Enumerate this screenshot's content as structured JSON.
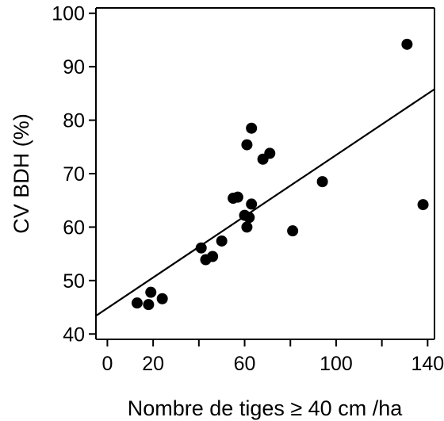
{
  "chart_data": {
    "type": "scatter",
    "title": "",
    "xlabel": "Nombre de tiges ≥ 40 cm /ha",
    "ylabel": "CV BDH (%)",
    "xlim": [
      -5,
      143
    ],
    "ylim": [
      39,
      101
    ],
    "x_ticks": [
      0,
      20,
      40,
      60,
      80,
      100,
      120,
      140
    ],
    "x_tick_labels": [
      "0",
      "20",
      "",
      "60",
      "",
      "100",
      "",
      "140"
    ],
    "y_ticks": [
      40,
      50,
      60,
      70,
      80,
      90,
      100
    ],
    "y_tick_labels": [
      "40",
      "50",
      "60",
      "70",
      "80",
      "90",
      "100"
    ],
    "grid": false,
    "legend": "none",
    "colors": {
      "points": "#000000",
      "line": "#000000"
    },
    "points": [
      {
        "x": 13,
        "y": 45.8
      },
      {
        "x": 18,
        "y": 45.5
      },
      {
        "x": 19,
        "y": 47.8
      },
      {
        "x": 24,
        "y": 46.6
      },
      {
        "x": 41,
        "y": 56.1
      },
      {
        "x": 43,
        "y": 53.9
      },
      {
        "x": 46,
        "y": 54.5
      },
      {
        "x": 50,
        "y": 57.4
      },
      {
        "x": 55,
        "y": 65.4
      },
      {
        "x": 57,
        "y": 65.6
      },
      {
        "x": 60,
        "y": 62.2
      },
      {
        "x": 61,
        "y": 75.4
      },
      {
        "x": 61,
        "y": 60.0
      },
      {
        "x": 62,
        "y": 61.8
      },
      {
        "x": 63,
        "y": 64.3
      },
      {
        "x": 63,
        "y": 78.5
      },
      {
        "x": 68,
        "y": 72.7
      },
      {
        "x": 71,
        "y": 73.8
      },
      {
        "x": 81,
        "y": 59.3
      },
      {
        "x": 94,
        "y": 68.5
      },
      {
        "x": 131,
        "y": 94.2
      },
      {
        "x": 138,
        "y": 64.2
      }
    ],
    "trendline": {
      "x": [
        -5,
        143
      ],
      "y": [
        43.4,
        85.8
      ]
    }
  }
}
